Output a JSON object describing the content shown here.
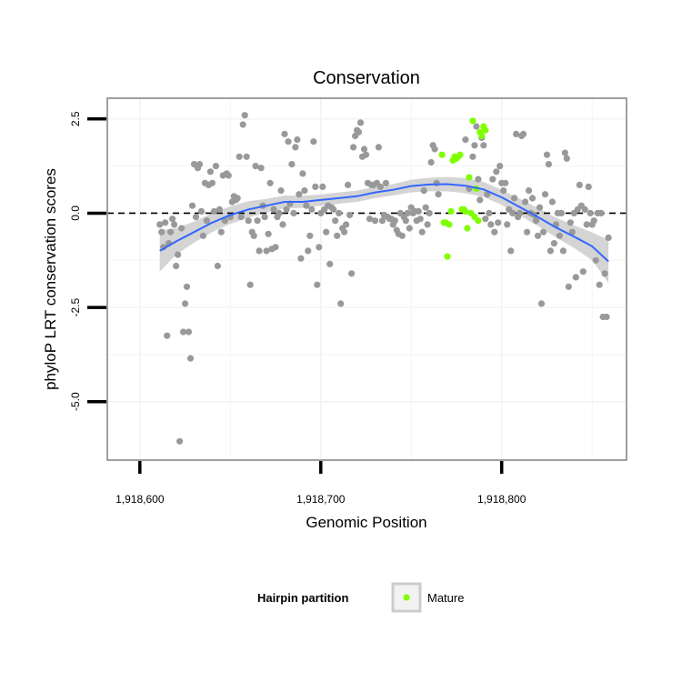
{
  "chart_data": {
    "type": "scatter",
    "title": "Conservation",
    "xlabel": "Genomic Position",
    "ylabel": "phyloP LRT conservation scores",
    "xlim": [
      1918582,
      1918869
    ],
    "ylim": [
      -6.55,
      3.05
    ],
    "x_ticks": [
      {
        "value": 1918600,
        "label": "1,918,600"
      },
      {
        "value": 1918700,
        "label": "1,918,700"
      },
      {
        "value": 1918800,
        "label": "1,918,800"
      }
    ],
    "y_ticks": [
      {
        "value": 2.5,
        "label": "2.5"
      },
      {
        "value": 0,
        "label": "0.0"
      },
      {
        "value": -2.5,
        "label": "-2.5"
      },
      {
        "value": -5,
        "label": "-5.0"
      }
    ],
    "reference_line": {
      "y": 0,
      "style": "dashed",
      "color": "#000000"
    },
    "grid": true,
    "colors": {
      "background_points": "#999999",
      "mature": "#7FFF00",
      "smooth_line": "#3366FF",
      "smooth_ribbon": "#CCCCCC",
      "grid": "#F2F2F2",
      "panel_border": "#808080"
    },
    "legend": {
      "title": "Hairpin partition",
      "position": "bottom",
      "entries": [
        {
          "label": "Mature",
          "color": "#7FFF00"
        }
      ]
    },
    "series": [
      {
        "color": "#999999",
        "points": [
          [
            1918611,
            -0.3
          ],
          [
            1918612,
            -0.5
          ],
          [
            1918613,
            -0.9
          ],
          [
            1918614,
            -0.25
          ],
          [
            1918615,
            -3.25
          ],
          [
            1918616,
            -0.8
          ],
          [
            1918617,
            -0.5
          ],
          [
            1918618,
            -0.15
          ],
          [
            1918619,
            -0.3
          ],
          [
            1918620,
            -1.4
          ],
          [
            1918621,
            -1.1
          ],
          [
            1918622,
            -6.05
          ],
          [
            1918623,
            -0.4
          ],
          [
            1918624,
            -3.15
          ],
          [
            1918625,
            -2.4
          ],
          [
            1918626,
            -1.95
          ],
          [
            1918627,
            -3.15
          ],
          [
            1918628,
            -3.85
          ],
          [
            1918629,
            0.2
          ],
          [
            1918630,
            1.3
          ],
          [
            1918631,
            -0.1
          ],
          [
            1918632,
            1.2
          ],
          [
            1918633,
            1.3
          ],
          [
            1918634,
            0.05
          ],
          [
            1918635,
            -0.6
          ],
          [
            1918636,
            0.8
          ],
          [
            1918637,
            -0.2
          ],
          [
            1918638,
            0.75
          ],
          [
            1918639,
            1.1
          ],
          [
            1918640,
            0.8
          ],
          [
            1918641,
            0.05
          ],
          [
            1918642,
            1.25
          ],
          [
            1918643,
            -1.4
          ],
          [
            1918644,
            0.1
          ],
          [
            1918645,
            -0.5
          ],
          [
            1918646,
            1.0
          ],
          [
            1918647,
            -0.2
          ],
          [
            1918648,
            1.05
          ],
          [
            1918649,
            1.0
          ],
          [
            1918650,
            -0.1
          ],
          [
            1918651,
            0.3
          ],
          [
            1918652,
            0.45
          ],
          [
            1918653,
            0.35
          ],
          [
            1918654,
            0.4
          ],
          [
            1918655,
            1.5
          ],
          [
            1918656,
            -0.1
          ],
          [
            1918657,
            2.35
          ],
          [
            1918658,
            2.6
          ],
          [
            1918659,
            1.5
          ],
          [
            1918660,
            -0.2
          ],
          [
            1918661,
            -1.9
          ],
          [
            1918662,
            -0.5
          ],
          [
            1918663,
            -0.6
          ],
          [
            1918664,
            1.25
          ],
          [
            1918665,
            -0.2
          ],
          [
            1918666,
            -1.0
          ],
          [
            1918667,
            1.2
          ],
          [
            1918668,
            0.2
          ],
          [
            1918669,
            -0.1
          ],
          [
            1918670,
            -1.0
          ],
          [
            1918671,
            -0.55
          ],
          [
            1918672,
            0.8
          ],
          [
            1918673,
            -0.95
          ],
          [
            1918674,
            0.1
          ],
          [
            1918675,
            -0.9
          ],
          [
            1918676,
            -0.1
          ],
          [
            1918677,
            0.0
          ],
          [
            1918678,
            0.6
          ],
          [
            1918679,
            -0.3
          ],
          [
            1918680,
            2.1
          ],
          [
            1918681,
            0.1
          ],
          [
            1918682,
            1.9
          ],
          [
            1918683,
            0.25
          ],
          [
            1918684,
            1.3
          ],
          [
            1918685,
            0.0
          ],
          [
            1918686,
            1.75
          ],
          [
            1918687,
            1.95
          ],
          [
            1918688,
            0.5
          ],
          [
            1918689,
            -1.2
          ],
          [
            1918690,
            1.05
          ],
          [
            1918691,
            0.6
          ],
          [
            1918692,
            0.2
          ],
          [
            1918693,
            -1.0
          ],
          [
            1918694,
            -0.6
          ],
          [
            1918695,
            0.1
          ],
          [
            1918696,
            1.9
          ],
          [
            1918697,
            0.7
          ],
          [
            1918698,
            -1.9
          ],
          [
            1918699,
            -0.9
          ],
          [
            1918700,
            0.0
          ],
          [
            1918701,
            0.7
          ],
          [
            1918702,
            0.1
          ],
          [
            1918703,
            -0.5
          ],
          [
            1918704,
            0.2
          ],
          [
            1918705,
            -1.35
          ],
          [
            1918706,
            0.15
          ],
          [
            1918707,
            0.1
          ],
          [
            1918708,
            -0.2
          ],
          [
            1918709,
            -0.6
          ],
          [
            1918710,
            0.0
          ],
          [
            1918711,
            -2.4
          ],
          [
            1918712,
            -0.4
          ],
          [
            1918713,
            -0.5
          ],
          [
            1918714,
            -0.3
          ],
          [
            1918715,
            0.75
          ],
          [
            1918716,
            -0.05
          ],
          [
            1918717,
            -1.6
          ],
          [
            1918718,
            1.75
          ],
          [
            1918719,
            2.05
          ],
          [
            1918720,
            2.2
          ],
          [
            1918721,
            2.15
          ],
          [
            1918722,
            2.4
          ],
          [
            1918723,
            1.5
          ],
          [
            1918724,
            1.7
          ],
          [
            1918725,
            1.55
          ],
          [
            1918726,
            0.8
          ],
          [
            1918727,
            -0.15
          ],
          [
            1918728,
            0.75
          ],
          [
            1918729,
            0.75
          ],
          [
            1918730,
            -0.2
          ],
          [
            1918731,
            0.8
          ],
          [
            1918732,
            1.75
          ],
          [
            1918733,
            0.7
          ],
          [
            1918734,
            -0.2
          ],
          [
            1918735,
            -0.05
          ],
          [
            1918736,
            0.8
          ],
          [
            1918737,
            -0.1
          ],
          [
            1918738,
            -0.15
          ],
          [
            1918739,
            -0.15
          ],
          [
            1918740,
            -0.3
          ],
          [
            1918741,
            -0.2
          ],
          [
            1918742,
            -0.45
          ],
          [
            1918743,
            -0.55
          ],
          [
            1918744,
            0.0
          ],
          [
            1918745,
            -0.6
          ],
          [
            1918746,
            -0.1
          ],
          [
            1918747,
            -0.2
          ],
          [
            1918748,
            0.0
          ],
          [
            1918749,
            -0.4
          ],
          [
            1918750,
            0.15
          ],
          [
            1918751,
            0.0
          ],
          [
            1918752,
            0.05
          ],
          [
            1918753,
            -0.2
          ],
          [
            1918754,
            0.05
          ],
          [
            1918755,
            -0.15
          ],
          [
            1918756,
            -0.5
          ],
          [
            1918757,
            0.6
          ],
          [
            1918758,
            0.15
          ],
          [
            1918759,
            -0.3
          ],
          [
            1918760,
            0.0
          ],
          [
            1918761,
            1.35
          ],
          [
            1918762,
            1.8
          ],
          [
            1918763,
            1.7
          ],
          [
            1918764,
            0.8
          ],
          [
            1918765,
            0.5
          ],
          [
            1918780,
            1.95
          ],
          [
            1918782,
            0.65
          ],
          [
            1918784,
            1.5
          ],
          [
            1918785,
            1.8
          ],
          [
            1918786,
            2.3
          ],
          [
            1918787,
            0.9
          ],
          [
            1918788,
            0.35
          ],
          [
            1918789,
            2.0
          ],
          [
            1918790,
            1.8
          ],
          [
            1918791,
            -0.15
          ],
          [
            1918792,
            0.5
          ],
          [
            1918793,
            0.0
          ],
          [
            1918794,
            -0.3
          ],
          [
            1918795,
            0.9
          ],
          [
            1918796,
            -0.5
          ],
          [
            1918797,
            1.1
          ],
          [
            1918798,
            -0.25
          ],
          [
            1918799,
            1.25
          ],
          [
            1918800,
            0.8
          ],
          [
            1918801,
            0.6
          ],
          [
            1918802,
            0.8
          ],
          [
            1918803,
            -0.3
          ],
          [
            1918804,
            0.1
          ],
          [
            1918805,
            -1.0
          ],
          [
            1918806,
            0.0
          ],
          [
            1918807,
            0.4
          ],
          [
            1918808,
            2.1
          ],
          [
            1918809,
            -0.1
          ],
          [
            1918810,
            0.0
          ],
          [
            1918811,
            2.05
          ],
          [
            1918812,
            2.1
          ],
          [
            1918813,
            0.3
          ],
          [
            1918814,
            -0.5
          ],
          [
            1918815,
            0.6
          ],
          [
            1918816,
            0.0
          ],
          [
            1918817,
            0.4
          ],
          [
            1918818,
            -0.05
          ],
          [
            1918819,
            -0.2
          ],
          [
            1918820,
            -0.6
          ],
          [
            1918821,
            0.15
          ],
          [
            1918822,
            -2.4
          ],
          [
            1918823,
            -0.5
          ],
          [
            1918824,
            0.5
          ],
          [
            1918825,
            1.55
          ],
          [
            1918826,
            1.3
          ],
          [
            1918827,
            -1.0
          ],
          [
            1918828,
            0.3
          ],
          [
            1918829,
            -0.8
          ],
          [
            1918830,
            -0.3
          ],
          [
            1918831,
            0.0
          ],
          [
            1918832,
            -0.6
          ],
          [
            1918833,
            0.0
          ],
          [
            1918834,
            -1.0
          ],
          [
            1918835,
            1.6
          ],
          [
            1918836,
            1.45
          ],
          [
            1918837,
            -1.95
          ],
          [
            1918838,
            -0.25
          ],
          [
            1918839,
            -0.5
          ],
          [
            1918840,
            0.0
          ],
          [
            1918841,
            -1.7
          ],
          [
            1918842,
            0.1
          ],
          [
            1918843,
            0.75
          ],
          [
            1918844,
            0.2
          ],
          [
            1918845,
            -1.55
          ],
          [
            1918846,
            0.1
          ],
          [
            1918847,
            -0.3
          ],
          [
            1918848,
            0.7
          ],
          [
            1918849,
            0.0
          ],
          [
            1918850,
            -0.3
          ],
          [
            1918851,
            -0.2
          ],
          [
            1918852,
            -1.25
          ],
          [
            1918853,
            0.0
          ],
          [
            1918854,
            -1.9
          ],
          [
            1918855,
            0.0
          ],
          [
            1918856,
            -2.75
          ],
          [
            1918857,
            -1.6
          ],
          [
            1918858,
            -2.75
          ],
          [
            1918859,
            -0.65
          ]
        ]
      },
      {
        "name": "Mature",
        "color": "#7FFF00",
        "points": [
          [
            1918767,
            1.55
          ],
          [
            1918768,
            -0.25
          ],
          [
            1918769,
            -0.25
          ],
          [
            1918770,
            -1.15
          ],
          [
            1918771,
            -0.3
          ],
          [
            1918772,
            0.05
          ],
          [
            1918773,
            1.4
          ],
          [
            1918774,
            1.5
          ],
          [
            1918775,
            1.45
          ],
          [
            1918776,
            1.5
          ],
          [
            1918777,
            1.55
          ],
          [
            1918778,
            0.1
          ],
          [
            1918779,
            0.1
          ],
          [
            1918780,
            0.05
          ],
          [
            1918781,
            -0.4
          ],
          [
            1918782,
            0.95
          ],
          [
            1918783,
            0.0
          ],
          [
            1918784,
            2.45
          ],
          [
            1918785,
            -0.1
          ],
          [
            1918786,
            0.65
          ],
          [
            1918787,
            -0.2
          ],
          [
            1918788,
            2.15
          ],
          [
            1918789,
            2.05
          ],
          [
            1918790,
            2.3
          ],
          [
            1918791,
            2.2
          ]
        ]
      }
    ],
    "smooth": {
      "x": [
        1918611,
        1918620,
        1918630,
        1918640,
        1918650,
        1918660,
        1918670,
        1918680,
        1918690,
        1918700,
        1918710,
        1918720,
        1918730,
        1918740,
        1918750,
        1918760,
        1918770,
        1918780,
        1918790,
        1918800,
        1918810,
        1918820,
        1918830,
        1918840,
        1918850,
        1918859
      ],
      "y": [
        -1.0,
        -0.75,
        -0.5,
        -0.25,
        -0.05,
        0.1,
        0.2,
        0.3,
        0.3,
        0.35,
        0.4,
        0.45,
        0.55,
        0.62,
        0.72,
        0.76,
        0.77,
        0.73,
        0.63,
        0.42,
        0.16,
        -0.1,
        -0.38,
        -0.62,
        -0.88,
        -1.28
      ],
      "lower": [
        -1.55,
        -1.1,
        -0.78,
        -0.5,
        -0.28,
        -0.12,
        0.02,
        0.13,
        0.14,
        0.2,
        0.25,
        0.3,
        0.4,
        0.47,
        0.55,
        0.58,
        0.58,
        0.53,
        0.43,
        0.22,
        -0.06,
        -0.34,
        -0.64,
        -0.92,
        -1.25,
        -1.85
      ],
      "upper": [
        -0.45,
        -0.4,
        -0.22,
        0.0,
        0.18,
        0.32,
        0.38,
        0.47,
        0.46,
        0.5,
        0.55,
        0.6,
        0.7,
        0.77,
        0.89,
        0.94,
        0.96,
        0.93,
        0.83,
        0.62,
        0.38,
        0.14,
        -0.12,
        -0.32,
        -0.51,
        -0.71
      ]
    }
  }
}
